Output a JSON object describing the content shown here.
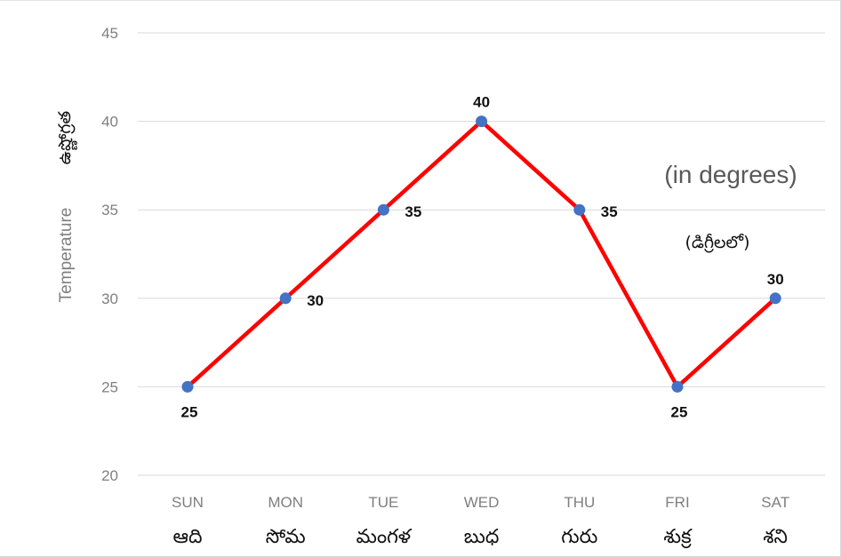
{
  "chart_data": {
    "type": "line",
    "categories": [
      "SUN",
      "MON",
      "TUE",
      "WED",
      "THU",
      "FRI",
      "SAT"
    ],
    "categories_te": [
      "ఆది",
      "సోమ",
      "మంగళ",
      "బుధ",
      "గురు",
      "శుక్ర",
      "శని"
    ],
    "values": [
      25,
      30,
      35,
      40,
      35,
      25,
      30
    ],
    "ylim": [
      20,
      45
    ],
    "yticks": [
      "20",
      "25",
      "30",
      "35",
      "40",
      "45"
    ],
    "ylabel": "Temperature",
    "ylabel_te": "ఉష్ణోగ్రత",
    "annotation_en": "(in degrees)",
    "annotation_te": "(డిగ్రీలలో)",
    "grid": true,
    "line_color": "#ff0000",
    "marker_color": "#4472c4",
    "grid_color": "#d9d9d9"
  }
}
